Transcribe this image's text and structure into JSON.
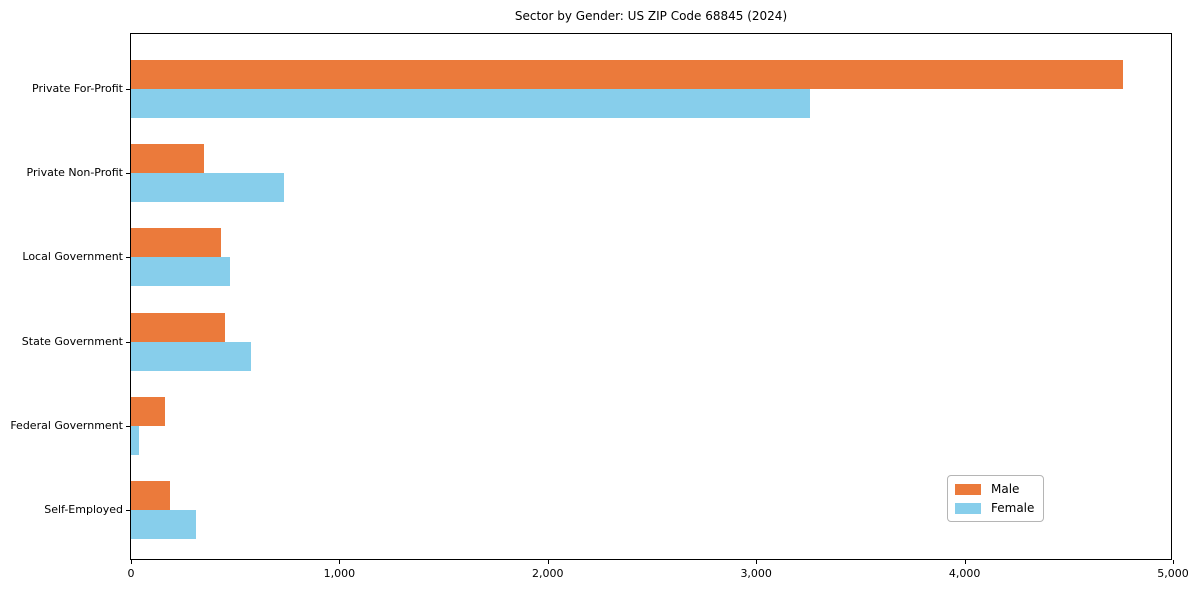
{
  "chart_data": {
    "type": "bar",
    "orientation": "horizontal",
    "title": "Sector by Gender: US ZIP Code 68845 (2024)",
    "categories": [
      "Private For-Profit",
      "Private Non-Profit",
      "Local Government",
      "State Government",
      "Federal Government",
      "Self-Employed"
    ],
    "series": [
      {
        "name": "Male",
        "color": "#EB7A3B",
        "values": [
          4760,
          350,
          430,
          450,
          165,
          185
        ]
      },
      {
        "name": "Female",
        "color": "#87CEEB",
        "values": [
          3260,
          735,
          475,
          575,
          40,
          310
        ]
      }
    ],
    "xlabel": "",
    "ylabel": "",
    "xlim": [
      0,
      5000
    ],
    "xticks": [
      0,
      1000,
      2000,
      3000,
      4000,
      5000
    ],
    "xtick_labels": [
      "0",
      "1,000",
      "2,000",
      "3,000",
      "4,000",
      "5,000"
    ],
    "grid": false,
    "legend_position": "lower right",
    "colors": {
      "male": "#EB7A3B",
      "female": "#87CEEB",
      "spine": "#000000",
      "background": "#ffffff"
    }
  }
}
